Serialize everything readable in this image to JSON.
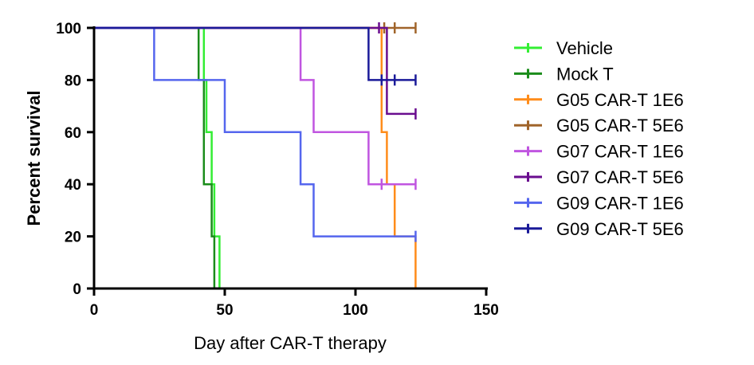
{
  "chart_data": {
    "type": "line",
    "subtype": "kaplan-meier-step",
    "title": "",
    "xlabel": "Day after CAR-T therapy",
    "ylabel": "Percent survival",
    "xlim": [
      0,
      150
    ],
    "ylim": [
      0,
      100
    ],
    "xticks": [
      0,
      50,
      100,
      150
    ],
    "yticks": [
      0,
      20,
      40,
      60,
      80,
      100
    ],
    "legend_position": "right",
    "series": [
      {
        "name": "Vehicle",
        "color": "#33ee33",
        "points": [
          [
            0,
            100
          ],
          [
            42,
            100
          ],
          [
            42,
            80
          ],
          [
            43,
            80
          ],
          [
            43,
            60
          ],
          [
            45,
            60
          ],
          [
            45,
            40
          ],
          [
            46,
            40
          ],
          [
            46,
            20
          ],
          [
            48,
            20
          ],
          [
            48,
            0
          ]
        ],
        "censored": []
      },
      {
        "name": "Mock T",
        "color": "#1a8c1a",
        "points": [
          [
            0,
            100
          ],
          [
            40,
            100
          ],
          [
            40,
            80
          ],
          [
            42,
            80
          ],
          [
            42,
            40
          ],
          [
            45,
            40
          ],
          [
            45,
            20
          ],
          [
            46,
            20
          ],
          [
            46,
            0
          ]
        ],
        "censored": []
      },
      {
        "name": "G05 CAR-T 1E6",
        "color": "#ff8c1a",
        "points": [
          [
            0,
            100
          ],
          [
            110,
            100
          ],
          [
            110,
            60
          ],
          [
            112,
            60
          ],
          [
            112,
            40
          ],
          [
            115,
            40
          ],
          [
            115,
            20
          ],
          [
            123,
            20
          ],
          [
            123,
            0
          ]
        ],
        "censored": []
      },
      {
        "name": "G05 CAR-T 5E6",
        "color": "#a0642a",
        "points": [
          [
            0,
            100
          ],
          [
            123,
            100
          ]
        ],
        "censored": [
          [
            111,
            100
          ],
          [
            115,
            100
          ],
          [
            123,
            100
          ]
        ]
      },
      {
        "name": "G07 CAR-T 1E6",
        "color": "#c055e0",
        "points": [
          [
            0,
            100
          ],
          [
            79,
            100
          ],
          [
            79,
            80
          ],
          [
            84,
            80
          ],
          [
            84,
            60
          ],
          [
            105,
            60
          ],
          [
            105,
            40
          ],
          [
            123,
            40
          ]
        ],
        "censored": [
          [
            110,
            40
          ],
          [
            123,
            40
          ]
        ]
      },
      {
        "name": "G07 CAR-T 5E6",
        "color": "#6a0d8f",
        "points": [
          [
            0,
            100
          ],
          [
            112,
            100
          ],
          [
            112,
            67
          ],
          [
            123,
            67
          ]
        ],
        "censored": [
          [
            109,
            100
          ],
          [
            123,
            67
          ]
        ]
      },
      {
        "name": "G09 CAR-T 1E6",
        "color": "#5566ee",
        "points": [
          [
            0,
            100
          ],
          [
            23,
            100
          ],
          [
            23,
            80
          ],
          [
            50,
            80
          ],
          [
            50,
            60
          ],
          [
            79,
            60
          ],
          [
            79,
            40
          ],
          [
            84,
            40
          ],
          [
            84,
            20
          ],
          [
            123,
            20
          ]
        ],
        "censored": [
          [
            123,
            20
          ]
        ]
      },
      {
        "name": "G09 CAR-T 5E6",
        "color": "#1a1a99",
        "points": [
          [
            0,
            100
          ],
          [
            105,
            100
          ],
          [
            105,
            80
          ],
          [
            123,
            80
          ]
        ],
        "censored": [
          [
            110,
            80
          ],
          [
            115,
            80
          ],
          [
            123,
            80
          ]
        ]
      }
    ]
  }
}
